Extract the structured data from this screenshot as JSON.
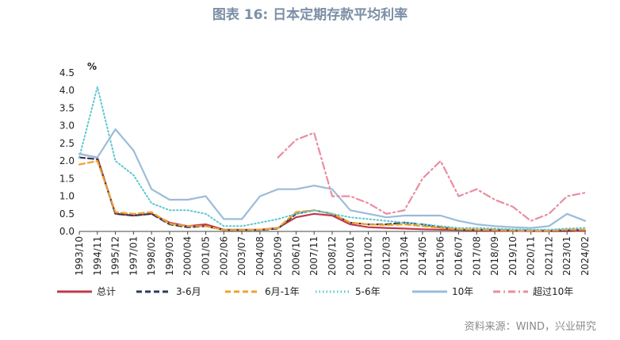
{
  "title": "图表 16: 日本定期存款平均利率",
  "source": "资料来源：WIND，兴业研究",
  "chart_data": {
    "type": "line",
    "title": "图表 16: 日本定期存款平均利率",
    "ylabel": "%",
    "ylim": [
      0,
      4.5
    ],
    "yticks": [
      "0.0",
      "0.5",
      "1.0",
      "1.5",
      "2.0",
      "2.5",
      "3.0",
      "3.5",
      "4.0",
      "4.5"
    ],
    "categories": [
      "1993/10",
      "1994/11",
      "1995/12",
      "1997/01",
      "1998/02",
      "1999/03",
      "2000/04",
      "2001/05",
      "2002/06",
      "2003/07",
      "2004/08",
      "2005/09",
      "2006/10",
      "2007/11",
      "2008/12",
      "2010/01",
      "2011/02",
      "2012/03",
      "2013/04",
      "2014/05",
      "2015/06",
      "2016/07",
      "2017/08",
      "2018/09",
      "2019/10",
      "2020/11",
      "2021/12",
      "2023/01",
      "2024/02"
    ],
    "series": [
      {
        "name": "总计",
        "color": "#c0394b",
        "style": "solid",
        "values": [
          2.2,
          2.1,
          0.5,
          0.45,
          0.5,
          0.25,
          0.15,
          0.2,
          0.05,
          0.05,
          0.05,
          0.1,
          0.4,
          0.5,
          0.45,
          0.2,
          0.12,
          0.1,
          0.08,
          0.06,
          0.05,
          0.04,
          0.03,
          0.02,
          0.02,
          0.01,
          0.01,
          0.01,
          0.02
        ]
      },
      {
        "name": "3-6月",
        "color": "#2e3a5c",
        "style": "dash",
        "values": [
          2.1,
          2.05,
          0.5,
          0.45,
          0.5,
          0.2,
          0.12,
          0.15,
          0.04,
          0.04,
          0.04,
          0.08,
          0.5,
          0.6,
          0.5,
          0.25,
          0.2,
          0.2,
          0.25,
          0.2,
          0.12,
          0.05,
          0.05,
          0.05,
          0.03,
          0.03,
          0.02,
          0.03,
          0.05
        ]
      },
      {
        "name": "6月-1年",
        "color": "#f0a12c",
        "style": "dash",
        "values": [
          1.9,
          2.0,
          0.55,
          0.5,
          0.55,
          0.22,
          0.15,
          0.15,
          0.04,
          0.04,
          0.05,
          0.1,
          0.55,
          0.6,
          0.5,
          0.25,
          0.2,
          0.18,
          0.2,
          0.15,
          0.1,
          0.06,
          0.05,
          0.04,
          0.03,
          0.02,
          0.02,
          0.05,
          0.05
        ]
      },
      {
        "name": "5-6年",
        "color": "#5cc8d0",
        "style": "dot",
        "values": [
          2.1,
          4.1,
          2.0,
          1.6,
          0.8,
          0.6,
          0.6,
          0.5,
          0.15,
          0.15,
          0.25,
          0.35,
          0.5,
          0.6,
          0.5,
          0.4,
          0.35,
          0.3,
          0.25,
          0.2,
          0.15,
          0.1,
          0.1,
          0.08,
          0.06,
          0.05,
          0.05,
          0.08,
          0.1
        ]
      },
      {
        "name": "10年",
        "color": "#9bbcda",
        "style": "solid",
        "values": [
          2.2,
          2.1,
          2.9,
          2.3,
          1.2,
          0.9,
          0.9,
          1.0,
          0.35,
          0.35,
          1.0,
          1.2,
          1.2,
          1.3,
          1.2,
          0.6,
          0.5,
          0.4,
          0.45,
          0.45,
          0.45,
          0.3,
          0.2,
          0.15,
          0.12,
          0.1,
          0.15,
          0.5,
          0.3
        ]
      },
      {
        "name": "超过10年",
        "color": "#ea8da0",
        "style": "dashdot",
        "values": [
          null,
          null,
          null,
          null,
          null,
          null,
          null,
          null,
          null,
          null,
          null,
          2.1,
          2.6,
          2.8,
          1.0,
          1.0,
          0.8,
          0.5,
          0.6,
          1.5,
          2.0,
          1.0,
          1.2,
          0.9,
          0.7,
          0.3,
          0.5,
          1.0,
          1.1
        ]
      }
    ],
    "legend_position": "bottom"
  }
}
